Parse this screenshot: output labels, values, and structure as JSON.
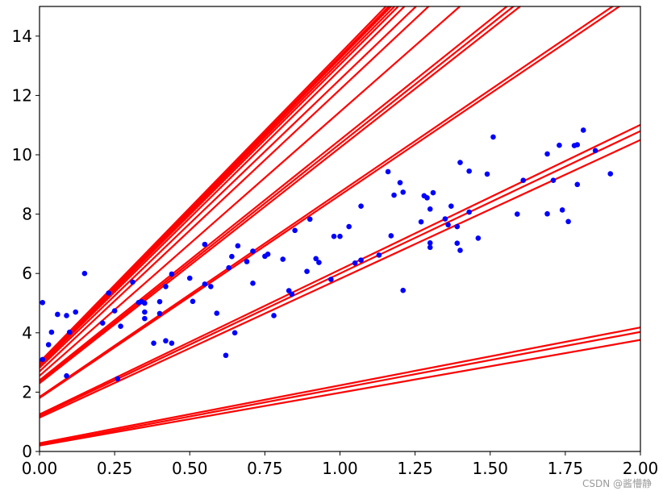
{
  "chart_data": {
    "type": "scatter",
    "title": "",
    "xlabel": "",
    "ylabel": "",
    "xlim": [
      0,
      2
    ],
    "ylim": [
      0,
      15
    ],
    "xticks": [
      0.0,
      0.25,
      0.5,
      0.75,
      1.0,
      1.25,
      1.5,
      1.75,
      2.0
    ],
    "xtick_labels": [
      "0.00",
      "0.25",
      "0.50",
      "0.75",
      "1.00",
      "1.25",
      "1.50",
      "1.75",
      "2.00"
    ],
    "yticks": [
      0,
      2,
      4,
      6,
      8,
      10,
      12,
      14
    ],
    "ytick_labels": [
      "0",
      "2",
      "4",
      "6",
      "8",
      "10",
      "12",
      "14"
    ],
    "grid": false,
    "legend": "none",
    "series": [
      {
        "type": "scatter",
        "color": "#0000ff",
        "points": [
          [
            0.01,
            5.02
          ],
          [
            0.01,
            3.1
          ],
          [
            0.03,
            3.6
          ],
          [
            0.04,
            4.02
          ],
          [
            0.06,
            4.62
          ],
          [
            0.09,
            4.58
          ],
          [
            0.09,
            2.55
          ],
          [
            0.1,
            4.02
          ],
          [
            0.12,
            4.7
          ],
          [
            0.15,
            6.0
          ],
          [
            0.21,
            4.33
          ],
          [
            0.23,
            5.34
          ],
          [
            0.25,
            4.74
          ],
          [
            0.26,
            2.45
          ],
          [
            0.27,
            4.22
          ],
          [
            0.31,
            5.71
          ],
          [
            0.33,
            5.02
          ],
          [
            0.34,
            5.05
          ],
          [
            0.35,
            4.7
          ],
          [
            0.35,
            5.0
          ],
          [
            0.35,
            4.48
          ],
          [
            0.38,
            3.65
          ],
          [
            0.4,
            4.65
          ],
          [
            0.4,
            5.05
          ],
          [
            0.42,
            5.56
          ],
          [
            0.42,
            3.73
          ],
          [
            0.44,
            3.65
          ],
          [
            0.44,
            5.98
          ],
          [
            0.5,
            5.84
          ],
          [
            0.51,
            5.06
          ],
          [
            0.55,
            6.98
          ],
          [
            0.55,
            5.64
          ],
          [
            0.57,
            5.56
          ],
          [
            0.59,
            4.66
          ],
          [
            0.62,
            3.24
          ],
          [
            0.63,
            6.19
          ],
          [
            0.64,
            6.57
          ],
          [
            0.65,
            4.0
          ],
          [
            0.66,
            6.93
          ],
          [
            0.69,
            6.4
          ],
          [
            0.71,
            6.75
          ],
          [
            0.71,
            5.67
          ],
          [
            0.75,
            6.58
          ],
          [
            0.76,
            6.65
          ],
          [
            0.78,
            4.58
          ],
          [
            0.81,
            6.48
          ],
          [
            0.83,
            5.42
          ],
          [
            0.84,
            5.3
          ],
          [
            0.85,
            7.45
          ],
          [
            0.89,
            6.07
          ],
          [
            0.9,
            7.83
          ],
          [
            0.92,
            6.5
          ],
          [
            0.93,
            6.37
          ],
          [
            0.97,
            5.8
          ],
          [
            0.98,
            7.25
          ],
          [
            1.0,
            7.25
          ],
          [
            1.03,
            7.58
          ],
          [
            1.05,
            6.35
          ],
          [
            1.07,
            6.45
          ],
          [
            1.07,
            8.27
          ],
          [
            1.13,
            6.62
          ],
          [
            1.16,
            9.43
          ],
          [
            1.17,
            7.27
          ],
          [
            1.18,
            8.64
          ],
          [
            1.2,
            9.06
          ],
          [
            1.21,
            8.74
          ],
          [
            1.21,
            5.43
          ],
          [
            1.27,
            7.74
          ],
          [
            1.28,
            8.62
          ],
          [
            1.29,
            8.55
          ],
          [
            1.3,
            8.17
          ],
          [
            1.3,
            6.88
          ],
          [
            1.3,
            7.03
          ],
          [
            1.31,
            8.72
          ],
          [
            1.35,
            7.84
          ],
          [
            1.36,
            7.64
          ],
          [
            1.37,
            8.27
          ],
          [
            1.39,
            7.02
          ],
          [
            1.39,
            7.58
          ],
          [
            1.4,
            6.78
          ],
          [
            1.4,
            9.74
          ],
          [
            1.43,
            9.45
          ],
          [
            1.43,
            8.07
          ],
          [
            1.46,
            7.19
          ],
          [
            1.49,
            9.35
          ],
          [
            1.51,
            10.6
          ],
          [
            1.59,
            8.0
          ],
          [
            1.61,
            9.14
          ],
          [
            1.69,
            10.03
          ],
          [
            1.69,
            8.01
          ],
          [
            1.71,
            9.14
          ],
          [
            1.73,
            10.32
          ],
          [
            1.74,
            8.14
          ],
          [
            1.76,
            7.75
          ],
          [
            1.78,
            10.31
          ],
          [
            1.79,
            10.34
          ],
          [
            1.79,
            9.0
          ],
          [
            1.81,
            10.83
          ],
          [
            1.85,
            10.14
          ],
          [
            1.9,
            9.36
          ]
        ]
      },
      {
        "type": "lines",
        "color": "#ff0000",
        "lines": [
          [
            0.2,
            1.78
          ],
          [
            0.23,
            1.9
          ],
          [
            0.28,
            1.95
          ],
          [
            1.14,
            4.68
          ],
          [
            1.2,
            4.8
          ],
          [
            1.25,
            4.88
          ],
          [
            1.8,
            6.84
          ],
          [
            1.84,
            6.9
          ],
          [
            2.3,
            7.94
          ],
          [
            2.35,
            8.02
          ],
          [
            2.4,
            8.1
          ],
          [
            2.55,
            8.9
          ],
          [
            2.7,
            9.5
          ],
          [
            2.82,
            9.72
          ],
          [
            2.88,
            9.98
          ],
          [
            2.92,
            10.12
          ],
          [
            2.95,
            10.2
          ],
          [
            2.97,
            10.28
          ],
          [
            2.99,
            10.33
          ],
          [
            3.01,
            10.4
          ]
        ]
      }
    ]
  },
  "watermark": "CSDN @酱懵静"
}
